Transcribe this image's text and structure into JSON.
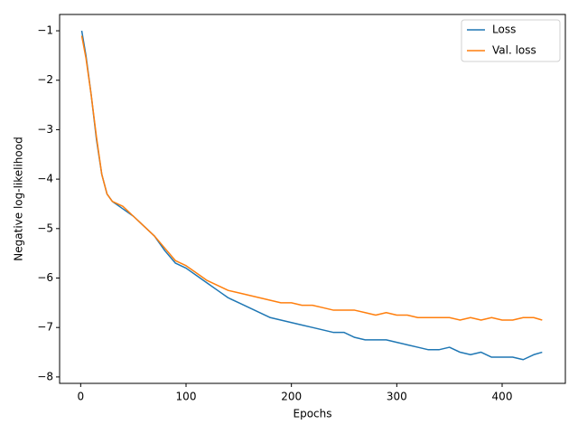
{
  "chart_data": {
    "type": "line",
    "xlabel": "Epochs",
    "ylabel": "Negative log-likelihood",
    "x": [
      1,
      5,
      10,
      15,
      20,
      25,
      30,
      40,
      50,
      60,
      70,
      80,
      90,
      100,
      110,
      120,
      130,
      140,
      150,
      160,
      170,
      180,
      190,
      200,
      210,
      220,
      230,
      240,
      250,
      260,
      270,
      280,
      290,
      300,
      310,
      320,
      330,
      340,
      350,
      360,
      370,
      380,
      390,
      400,
      410,
      420,
      430,
      438
    ],
    "series": [
      {
        "name": "Loss",
        "color": "#1f77b4",
        "values": [
          -1.0,
          -1.5,
          -2.3,
          -3.2,
          -3.9,
          -4.3,
          -4.45,
          -4.6,
          -4.75,
          -4.95,
          -5.15,
          -5.45,
          -5.7,
          -5.8,
          -5.95,
          -6.1,
          -6.25,
          -6.4,
          -6.5,
          -6.6,
          -6.7,
          -6.8,
          -6.85,
          -6.9,
          -6.95,
          -7.0,
          -7.05,
          -7.1,
          -7.1,
          -7.2,
          -7.25,
          -7.25,
          -7.25,
          -7.3,
          -7.35,
          -7.4,
          -7.45,
          -7.45,
          -7.4,
          -7.5,
          -7.55,
          -7.5,
          -7.6,
          -7.6,
          -7.6,
          -7.65,
          -7.55,
          -7.5
        ]
      },
      {
        "name": "Val. loss",
        "color": "#ff7f0e",
        "values": [
          -1.1,
          -1.55,
          -2.3,
          -3.15,
          -3.9,
          -4.3,
          -4.45,
          -4.55,
          -4.75,
          -4.95,
          -5.15,
          -5.4,
          -5.65,
          -5.75,
          -5.9,
          -6.05,
          -6.15,
          -6.25,
          -6.3,
          -6.35,
          -6.4,
          -6.45,
          -6.5,
          -6.5,
          -6.55,
          -6.55,
          -6.6,
          -6.65,
          -6.65,
          -6.65,
          -6.7,
          -6.75,
          -6.7,
          -6.75,
          -6.75,
          -6.8,
          -6.8,
          -6.8,
          -6.8,
          -6.85,
          -6.8,
          -6.85,
          -6.8,
          -6.85,
          -6.85,
          -6.8,
          -6.8,
          -6.85
        ]
      }
    ],
    "xlim": [
      -20,
      460
    ],
    "ylim": [
      -8.13,
      -0.67
    ],
    "xticks": [
      0,
      100,
      200,
      300,
      400
    ],
    "yticks": [
      {
        "value": -1,
        "label": "−1"
      },
      {
        "value": -2,
        "label": "−2"
      },
      {
        "value": -3,
        "label": "−3"
      },
      {
        "value": -4,
        "label": "−4"
      },
      {
        "value": -5,
        "label": "−5"
      },
      {
        "value": -6,
        "label": "−6"
      },
      {
        "value": -7,
        "label": "−7"
      },
      {
        "value": -8,
        "label": "−8"
      }
    ],
    "grid": false,
    "legend": "upper right"
  }
}
